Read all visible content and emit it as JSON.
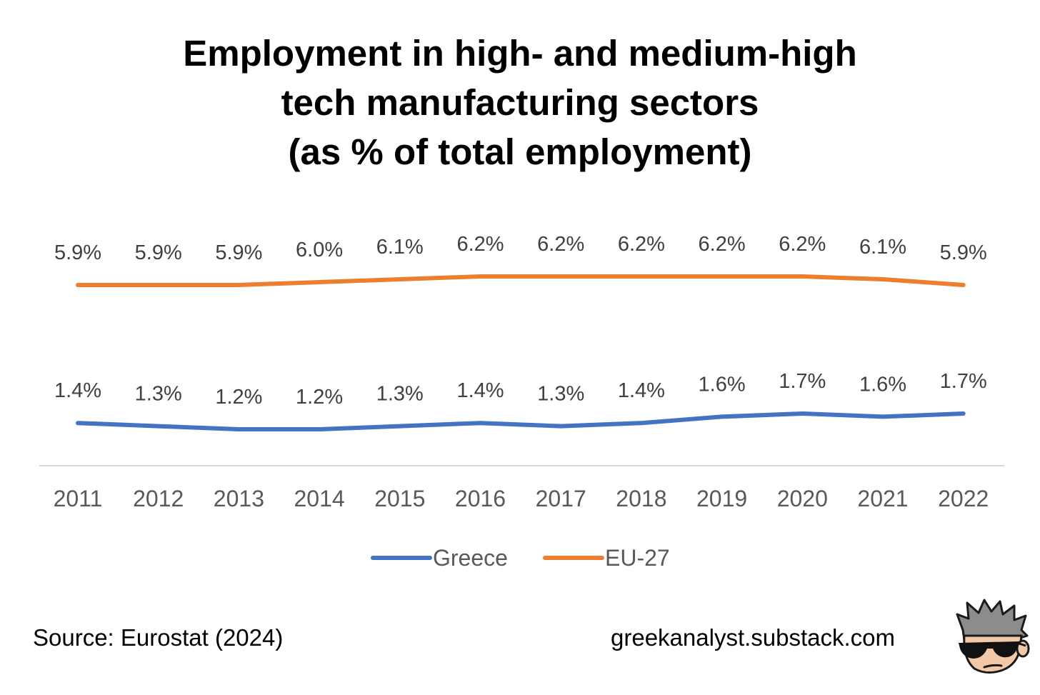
{
  "chart_data": {
    "type": "line",
    "title_lines": [
      "Employment in high- and medium-high",
      "tech manufacturing sectors",
      "(as % of total employment)"
    ],
    "categories": [
      "2011",
      "2012",
      "2013",
      "2014",
      "2015",
      "2016",
      "2017",
      "2018",
      "2019",
      "2020",
      "2021",
      "2022"
    ],
    "series": [
      {
        "name": "Greece",
        "color": "#4472C4",
        "values": [
          1.4,
          1.3,
          1.2,
          1.2,
          1.3,
          1.4,
          1.3,
          1.4,
          1.6,
          1.7,
          1.6,
          1.7
        ],
        "labels": [
          "1.4%",
          "1.3%",
          "1.2%",
          "1.2%",
          "1.3%",
          "1.4%",
          "1.3%",
          "1.4%",
          "1.6%",
          "1.7%",
          "1.6%",
          "1.7%"
        ]
      },
      {
        "name": "EU-27",
        "color": "#ED7D31",
        "values": [
          5.9,
          5.9,
          5.9,
          6.0,
          6.1,
          6.2,
          6.2,
          6.2,
          6.2,
          6.2,
          6.1,
          5.9
        ],
        "labels": [
          "5.9%",
          "5.9%",
          "5.9%",
          "6.0%",
          "6.1%",
          "6.2%",
          "6.2%",
          "6.2%",
          "6.2%",
          "6.2%",
          "6.1%",
          "5.9%"
        ]
      }
    ],
    "legend": "bottom",
    "grid": false,
    "ylim": [
      0,
      7
    ]
  },
  "footer": {
    "source": "Source: Eurostat (2024)",
    "site": "greekanalyst.substack.com"
  },
  "icons": {
    "avatar": "cartoon-man-sunglasses-icon"
  }
}
